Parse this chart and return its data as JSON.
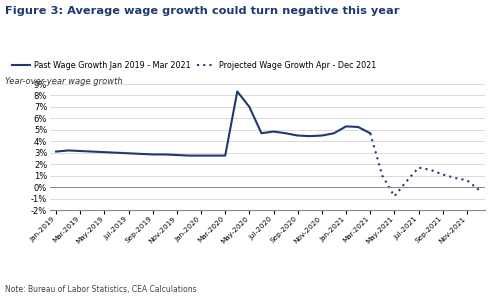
{
  "title": "Figure 3: Average wage growth could turn negative this year",
  "ylabel": "Year-over-year wage growth",
  "note": "Note: Bureau of Labor Statistics, CEA Calculations",
  "legend_solid": "Past Wage Growth Jan 2019 - Mar 2021",
  "legend_dotted": "Projected Wage Growth Apr - Dec 2021",
  "line_color": "#1e3a6e",
  "background_color": "#ffffff",
  "ylim": [
    -2,
    9
  ],
  "yticks": [
    -2,
    -1,
    0,
    1,
    2,
    3,
    4,
    5,
    6,
    7,
    8,
    9
  ],
  "past_x": [
    0,
    1,
    2,
    3,
    4,
    5,
    6,
    7,
    8,
    9,
    10,
    11,
    12,
    13,
    14,
    15,
    16,
    17,
    18,
    19,
    20,
    21,
    22,
    23,
    24,
    25,
    26
  ],
  "past_y": [
    3.1,
    3.2,
    3.15,
    3.1,
    3.05,
    3.0,
    2.95,
    2.9,
    2.85,
    2.85,
    2.8,
    2.75,
    2.75,
    2.75,
    2.75,
    8.35,
    7.0,
    4.7,
    4.85,
    4.7,
    4.5,
    4.45,
    4.5,
    4.7,
    5.3,
    5.25,
    4.7
  ],
  "proj_x": [
    26,
    27,
    28,
    29,
    30,
    31,
    32,
    33,
    34,
    35
  ],
  "proj_y": [
    4.7,
    1.0,
    -0.8,
    0.5,
    1.7,
    1.5,
    1.1,
    0.8,
    0.6,
    -0.25
  ],
  "xtick_labels": [
    "Jan-2019",
    "Mar-2019",
    "May-2019",
    "Jul-2019",
    "Sep-2019",
    "Nov-2019",
    "Jan-2020",
    "Mar-2020",
    "May-2020",
    "Jul-2020",
    "Sep-2020",
    "Nov-2020",
    "Jan-2021",
    "Mar-2021",
    "May-2021",
    "Jul-2021",
    "Sep-2021",
    "Nov-2021"
  ],
  "xtick_positions": [
    0,
    2,
    4,
    6,
    8,
    10,
    12,
    14,
    16,
    18,
    20,
    22,
    24,
    26,
    28,
    30,
    32,
    34
  ]
}
